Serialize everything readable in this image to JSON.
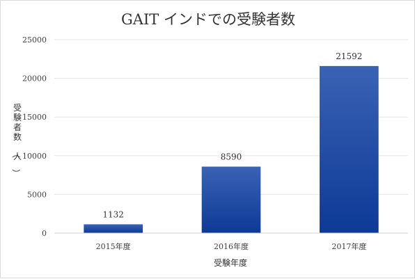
{
  "chart_data": {
    "type": "bar",
    "title": "GAIT インドでの受験者数",
    "xlabel": "受験年度",
    "ylabel": "受験者数（人）",
    "categories": [
      "2015年度",
      "2016年度",
      "2017年度"
    ],
    "values": [
      1132,
      8590,
      21592
    ],
    "ylim": [
      0,
      25000
    ],
    "yticks": [
      0,
      5000,
      10000,
      15000,
      20000,
      25000
    ],
    "grid": true,
    "legend": "none",
    "bar_color": "#1f4aa0"
  }
}
